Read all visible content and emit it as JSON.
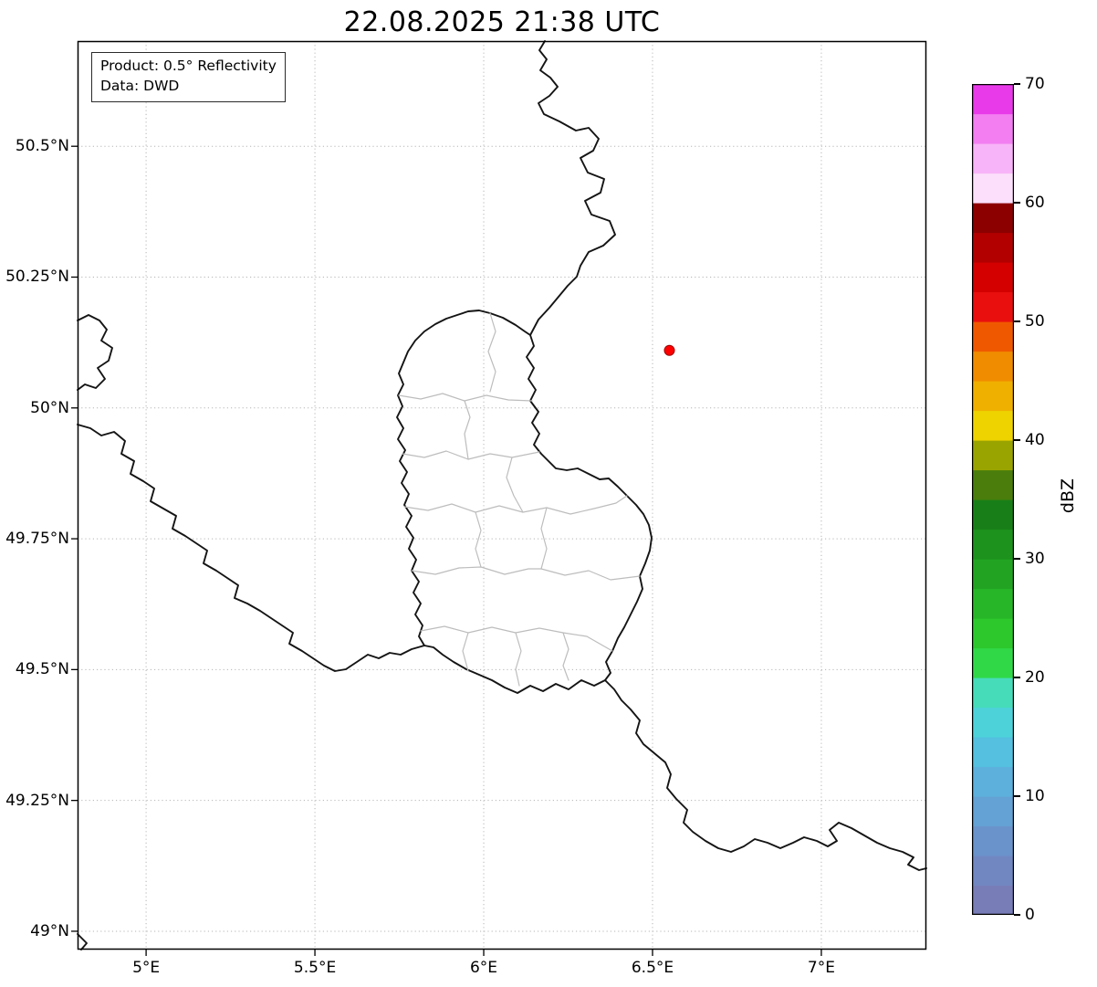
{
  "title": "22.08.2025 21:38 UTC",
  "info_box": {
    "product": "Product: 0.5° Reflectivity",
    "source": "Data: DWD"
  },
  "axes": {
    "x_ticks": [
      {
        "value": 5.0,
        "label": "5°E"
      },
      {
        "value": 5.5,
        "label": "5.5°E"
      },
      {
        "value": 6.0,
        "label": "6°E"
      },
      {
        "value": 6.5,
        "label": "6.5°E"
      },
      {
        "value": 7.0,
        "label": "7°E"
      }
    ],
    "y_ticks": [
      {
        "value": 50.5,
        "label": "50.5°N"
      },
      {
        "value": 50.25,
        "label": "50.25°N"
      },
      {
        "value": 50.0,
        "label": "50°N"
      },
      {
        "value": 49.75,
        "label": "49.75°N"
      },
      {
        "value": 49.5,
        "label": "49.5°N"
      },
      {
        "value": 49.25,
        "label": "49.25°N"
      },
      {
        "value": 49.0,
        "label": "49°N"
      }
    ],
    "x_range": [
      4.797,
      7.311
    ],
    "y_range": [
      48.965,
      50.701
    ]
  },
  "colorbar": {
    "label": "dBZ",
    "min": 0,
    "max": 70,
    "ticks": [
      0,
      10,
      20,
      30,
      40,
      50,
      60,
      70
    ],
    "colors_bottom_to_top": [
      "#787db8",
      "#7187c2",
      "#6b93cb",
      "#64a1d4",
      "#5db0dc",
      "#55c0e0",
      "#4dd2da",
      "#46dcba",
      "#30d848",
      "#2cc82c",
      "#27b627",
      "#22a422",
      "#1d921d",
      "#187f18",
      "#4a7d0c",
      "#9aa400",
      "#eed300",
      "#f0b000",
      "#f08c00",
      "#f05800",
      "#ea0f0f",
      "#d40000",
      "#b20000",
      "#8c0000",
      "#fbdffb",
      "#f8b4f8",
      "#f27ef2",
      "#e93ae9"
    ]
  },
  "marker": {
    "lon": 6.55,
    "lat": 50.11,
    "color": "#ff0000"
  }
}
